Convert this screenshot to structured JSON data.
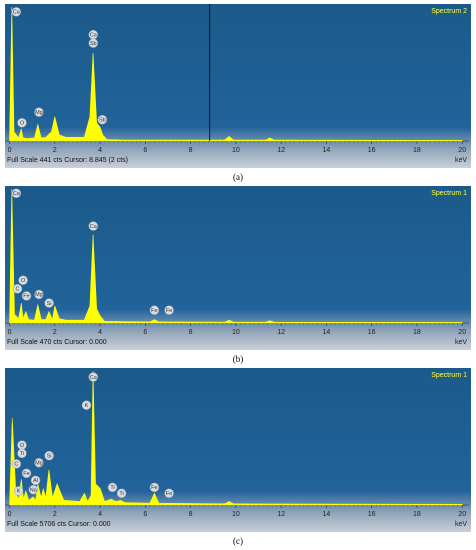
{
  "chart_data": [
    {
      "type": "area",
      "caption": "(a)",
      "spectrum_name": "Spectrum 2",
      "status": "Full Scale 441 cts Cursor: 8.845 (2 cts)",
      "x_label": "keV",
      "xlim": [
        -0.2,
        20.3
      ],
      "xticks": [
        0,
        2,
        4,
        6,
        8,
        10,
        12,
        14,
        16,
        18,
        20
      ],
      "ylim": [
        0,
        441
      ],
      "cursor": 8.845,
      "color": "#ffff00",
      "x": [
        0,
        0.1,
        0.2,
        0.4,
        0.52,
        0.6,
        0.8,
        1.1,
        1.25,
        1.4,
        1.6,
        1.85,
        2.0,
        2.2,
        2.5,
        3.3,
        3.55,
        3.69,
        3.85,
        4.0,
        4.12,
        4.3,
        5.0,
        9.5,
        9.7,
        9.9,
        11.3,
        11.5,
        11.7,
        20
      ],
      "values": [
        0,
        441,
        30,
        10,
        40,
        10,
        8,
        10,
        55,
        10,
        12,
        30,
        80,
        20,
        12,
        12,
        80,
        290,
        60,
        45,
        20,
        5,
        3,
        3,
        15,
        3,
        3,
        10,
        3,
        2
      ],
      "labels": [
        {
          "text": "Ca",
          "x": 0.3,
          "y": 425
        },
        {
          "text": "O",
          "x": 0.55,
          "y": 60
        },
        {
          "text": "Mg",
          "x": 1.3,
          "y": 95
        },
        {
          "text": "Ca",
          "x": 3.7,
          "y": 350
        },
        {
          "text": "Sb",
          "x": 3.7,
          "y": 322
        },
        {
          "text": "Sb",
          "x": 4.1,
          "y": 70
        }
      ]
    },
    {
      "type": "area",
      "caption": "(b)",
      "spectrum_name": "Spectrum 1",
      "status": "Full Scale 470 cts Cursor: 0.000",
      "x_label": "keV",
      "xlim": [
        -0.2,
        20.3
      ],
      "xticks": [
        0,
        2,
        4,
        6,
        8,
        10,
        12,
        14,
        16,
        18,
        20
      ],
      "ylim": [
        0,
        470
      ],
      "color": "#ffff00",
      "x": [
        0,
        0.1,
        0.22,
        0.4,
        0.52,
        0.6,
        0.72,
        0.85,
        1.1,
        1.25,
        1.4,
        1.6,
        1.74,
        1.9,
        2.0,
        2.2,
        2.5,
        3.3,
        3.55,
        3.69,
        3.85,
        4.0,
        4.2,
        6.2,
        6.4,
        6.6,
        9.5,
        9.7,
        9.9,
        11.3,
        11.5,
        11.7,
        20
      ],
      "values": [
        0,
        470,
        30,
        15,
        70,
        15,
        40,
        12,
        10,
        65,
        12,
        12,
        40,
        12,
        60,
        15,
        10,
        10,
        60,
        310,
        50,
        25,
        6,
        4,
        12,
        4,
        3,
        10,
        3,
        3,
        8,
        3,
        2
      ],
      "labels": [
        {
          "text": "Ca",
          "x": 0.3,
          "y": 455
        },
        {
          "text": "O",
          "x": 0.6,
          "y": 150
        },
        {
          "text": "C",
          "x": 0.35,
          "y": 120
        },
        {
          "text": "Fe",
          "x": 0.75,
          "y": 95
        },
        {
          "text": "Mg",
          "x": 1.3,
          "y": 100
        },
        {
          "text": "Si",
          "x": 1.75,
          "y": 70
        },
        {
          "text": "Ca",
          "x": 3.7,
          "y": 340
        },
        {
          "text": "Fe",
          "x": 6.4,
          "y": 45
        },
        {
          "text": "Fe",
          "x": 7.05,
          "y": 45
        }
      ]
    },
    {
      "type": "area",
      "caption": "(c)",
      "spectrum_name": "Spectrum 1",
      "status": "Full Scale 5706 cts Cursor: 0.000",
      "x_label": "keV",
      "xlim": [
        -0.2,
        20.3
      ],
      "xticks": [
        0,
        2,
        4,
        6,
        8,
        10,
        12,
        14,
        16,
        18,
        20
      ],
      "ylim": [
        0,
        5706
      ],
      "color": "#ffff00",
      "x": [
        0,
        0.12,
        0.28,
        0.4,
        0.52,
        0.62,
        0.72,
        0.85,
        1.04,
        1.15,
        1.25,
        1.4,
        1.49,
        1.6,
        1.74,
        1.9,
        2.1,
        2.4,
        3.1,
        3.31,
        3.45,
        3.6,
        3.69,
        3.8,
        4.01,
        4.2,
        4.5,
        4.7,
        4.9,
        5.1,
        6.2,
        6.4,
        6.6,
        9.5,
        9.7,
        9.9,
        20
      ],
      "values": [
        0,
        3700,
        500,
        250,
        1100,
        250,
        600,
        200,
        350,
        200,
        900,
        300,
        700,
        300,
        1500,
        300,
        900,
        200,
        150,
        500,
        150,
        400,
        5706,
        900,
        700,
        150,
        250,
        150,
        200,
        100,
        80,
        500,
        80,
        50,
        150,
        50,
        30
      ],
      "labels": [
        {
          "text": "O",
          "x": 0.55,
          "y": 2550
        },
        {
          "text": "Ti",
          "x": 0.55,
          "y": 2200
        },
        {
          "text": "C",
          "x": 0.3,
          "y": 1750
        },
        {
          "text": "Fe",
          "x": 0.75,
          "y": 1350
        },
        {
          "text": "Mg",
          "x": 1.3,
          "y": 1800
        },
        {
          "text": "Al",
          "x": 1.15,
          "y": 1050
        },
        {
          "text": "Na",
          "x": 1.05,
          "y": 650
        },
        {
          "text": "Si",
          "x": 1.75,
          "y": 2100
        },
        {
          "text": "K",
          "x": 0.4,
          "y": 600
        },
        {
          "text": "Ca",
          "x": 3.7,
          "y": 5450
        },
        {
          "text": "K",
          "x": 3.4,
          "y": 4250
        },
        {
          "text": "Ti",
          "x": 4.55,
          "y": 750
        },
        {
          "text": "Ti",
          "x": 4.95,
          "y": 500
        },
        {
          "text": "Fe",
          "x": 6.4,
          "y": 750
        },
        {
          "text": "Fe",
          "x": 7.05,
          "y": 500
        }
      ]
    }
  ]
}
